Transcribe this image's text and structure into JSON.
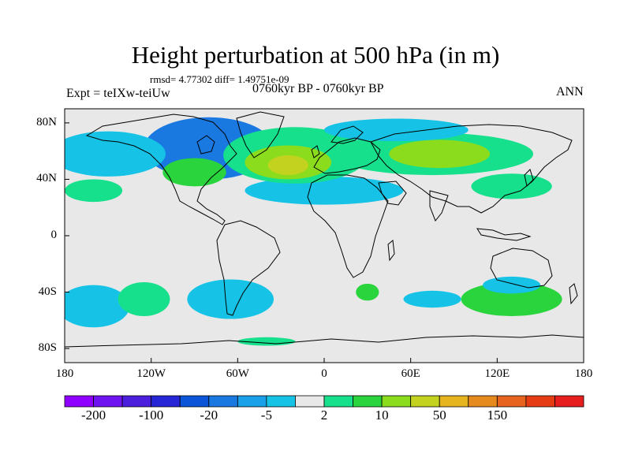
{
  "title": "Height perturbation at 500 hPa (in m)",
  "stats": "rmsd= 4.77302 diff= 1.49751e-09",
  "experiment": "Expt = teIXw-teiUw",
  "period": "0760kyr BP - 0760kyr BP",
  "season": "ANN",
  "axes": {
    "y_ticks": [
      {
        "lat": 80,
        "label": "80N"
      },
      {
        "lat": 40,
        "label": "40N"
      },
      {
        "lat": 0,
        "label": "0"
      },
      {
        "lat": -40,
        "label": "40S"
      },
      {
        "lat": -80,
        "label": "80S"
      }
    ],
    "x_ticks": [
      {
        "lon": -180,
        "label": "180"
      },
      {
        "lon": -120,
        "label": "120W"
      },
      {
        "lon": -60,
        "label": "60W"
      },
      {
        "lon": 0,
        "label": "0"
      },
      {
        "lon": 60,
        "label": "60E"
      },
      {
        "lon": 120,
        "label": "120E"
      },
      {
        "lon": 180,
        "label": "180"
      }
    ],
    "lon_range": [
      -180,
      180
    ],
    "lat_range": [
      -90,
      90
    ]
  },
  "colorbar": {
    "colors": [
      "#8f00ff",
      "#6f14f0",
      "#4b1fdc",
      "#2626d6",
      "#0a55d8",
      "#1a79e0",
      "#1aa0e8",
      "#16c3e6",
      "#e8e8e8",
      "#16e08c",
      "#2ad43c",
      "#8cdc1e",
      "#c3d21e",
      "#e6b41e",
      "#e68a1e",
      "#e6641e",
      "#e63c14",
      "#e61e1e"
    ],
    "labels": [
      {
        "after_box": 1,
        "text": "-200"
      },
      {
        "after_box": 3,
        "text": "-100"
      },
      {
        "after_box": 5,
        "text": "-20"
      },
      {
        "after_box": 7,
        "text": "-5"
      },
      {
        "after_box": 9,
        "text": "2"
      },
      {
        "after_box": 11,
        "text": "10"
      },
      {
        "after_box": 13,
        "text": "50"
      },
      {
        "after_box": 15,
        "text": "150"
      }
    ]
  },
  "anomalies": [
    {
      "level": "neg_strong",
      "lon": -75,
      "lat": 60,
      "rx": 28,
      "ry": 15,
      "color": "#0a55d8"
    },
    {
      "level": "neg_mid",
      "lon": -80,
      "lat": 62,
      "rx": 45,
      "ry": 22,
      "color": "#1a79e0"
    },
    {
      "level": "neg",
      "lon": -150,
      "lat": 58,
      "rx": 40,
      "ry": 16,
      "color": "#16c3e6"
    },
    {
      "level": "neg",
      "lon": 0,
      "lat": 32,
      "rx": 55,
      "ry": 10,
      "color": "#16c3e6"
    },
    {
      "level": "pos",
      "lon": -20,
      "lat": 57,
      "rx": 50,
      "ry": 20,
      "color": "#16e08c"
    },
    {
      "level": "pos_mid",
      "lon": -25,
      "lat": 52,
      "rx": 30,
      "ry": 12,
      "color": "#8cdc1e"
    },
    {
      "level": "pos_high",
      "lon": -25,
      "lat": 50,
      "rx": 14,
      "ry": 7,
      "color": "#c3d21e"
    },
    {
      "level": "pos",
      "lon": -90,
      "lat": 45,
      "rx": 22,
      "ry": 10,
      "color": "#2ad43c"
    },
    {
      "level": "pos",
      "lon": 75,
      "lat": 58,
      "rx": 70,
      "ry": 15,
      "color": "#16e08c"
    },
    {
      "level": "pos_mid",
      "lon": 80,
      "lat": 58,
      "rx": 35,
      "ry": 10,
      "color": "#8cdc1e"
    },
    {
      "level": "neg",
      "lon": 50,
      "lat": 75,
      "rx": 50,
      "ry": 8,
      "color": "#16c3e6"
    },
    {
      "level": "pos",
      "lon": 130,
      "lat": 35,
      "rx": 28,
      "ry": 9,
      "color": "#16e08c"
    },
    {
      "level": "pos",
      "lon": -160,
      "lat": 32,
      "rx": 20,
      "ry": 8,
      "color": "#16e08c"
    },
    {
      "level": "neg",
      "lon": -160,
      "lat": -50,
      "rx": 25,
      "ry": 15,
      "color": "#16c3e6"
    },
    {
      "level": "pos",
      "lon": -125,
      "lat": -45,
      "rx": 18,
      "ry": 12,
      "color": "#16e08c"
    },
    {
      "level": "neg",
      "lon": -65,
      "lat": -45,
      "rx": 30,
      "ry": 14,
      "color": "#16c3e6"
    },
    {
      "level": "pos",
      "lon": 30,
      "lat": -40,
      "rx": 8,
      "ry": 6,
      "color": "#2ad43c"
    },
    {
      "level": "neg",
      "lon": 75,
      "lat": -45,
      "rx": 20,
      "ry": 6,
      "color": "#16c3e6"
    },
    {
      "level": "pos",
      "lon": 130,
      "lat": -45,
      "rx": 35,
      "ry": 12,
      "color": "#2ad43c"
    },
    {
      "level": "neg",
      "lon": 130,
      "lat": -35,
      "rx": 20,
      "ry": 6,
      "color": "#16c3e6"
    },
    {
      "level": "pos",
      "lon": -40,
      "lat": -75,
      "rx": 20,
      "ry": 3,
      "color": "#16e08c"
    }
  ]
}
